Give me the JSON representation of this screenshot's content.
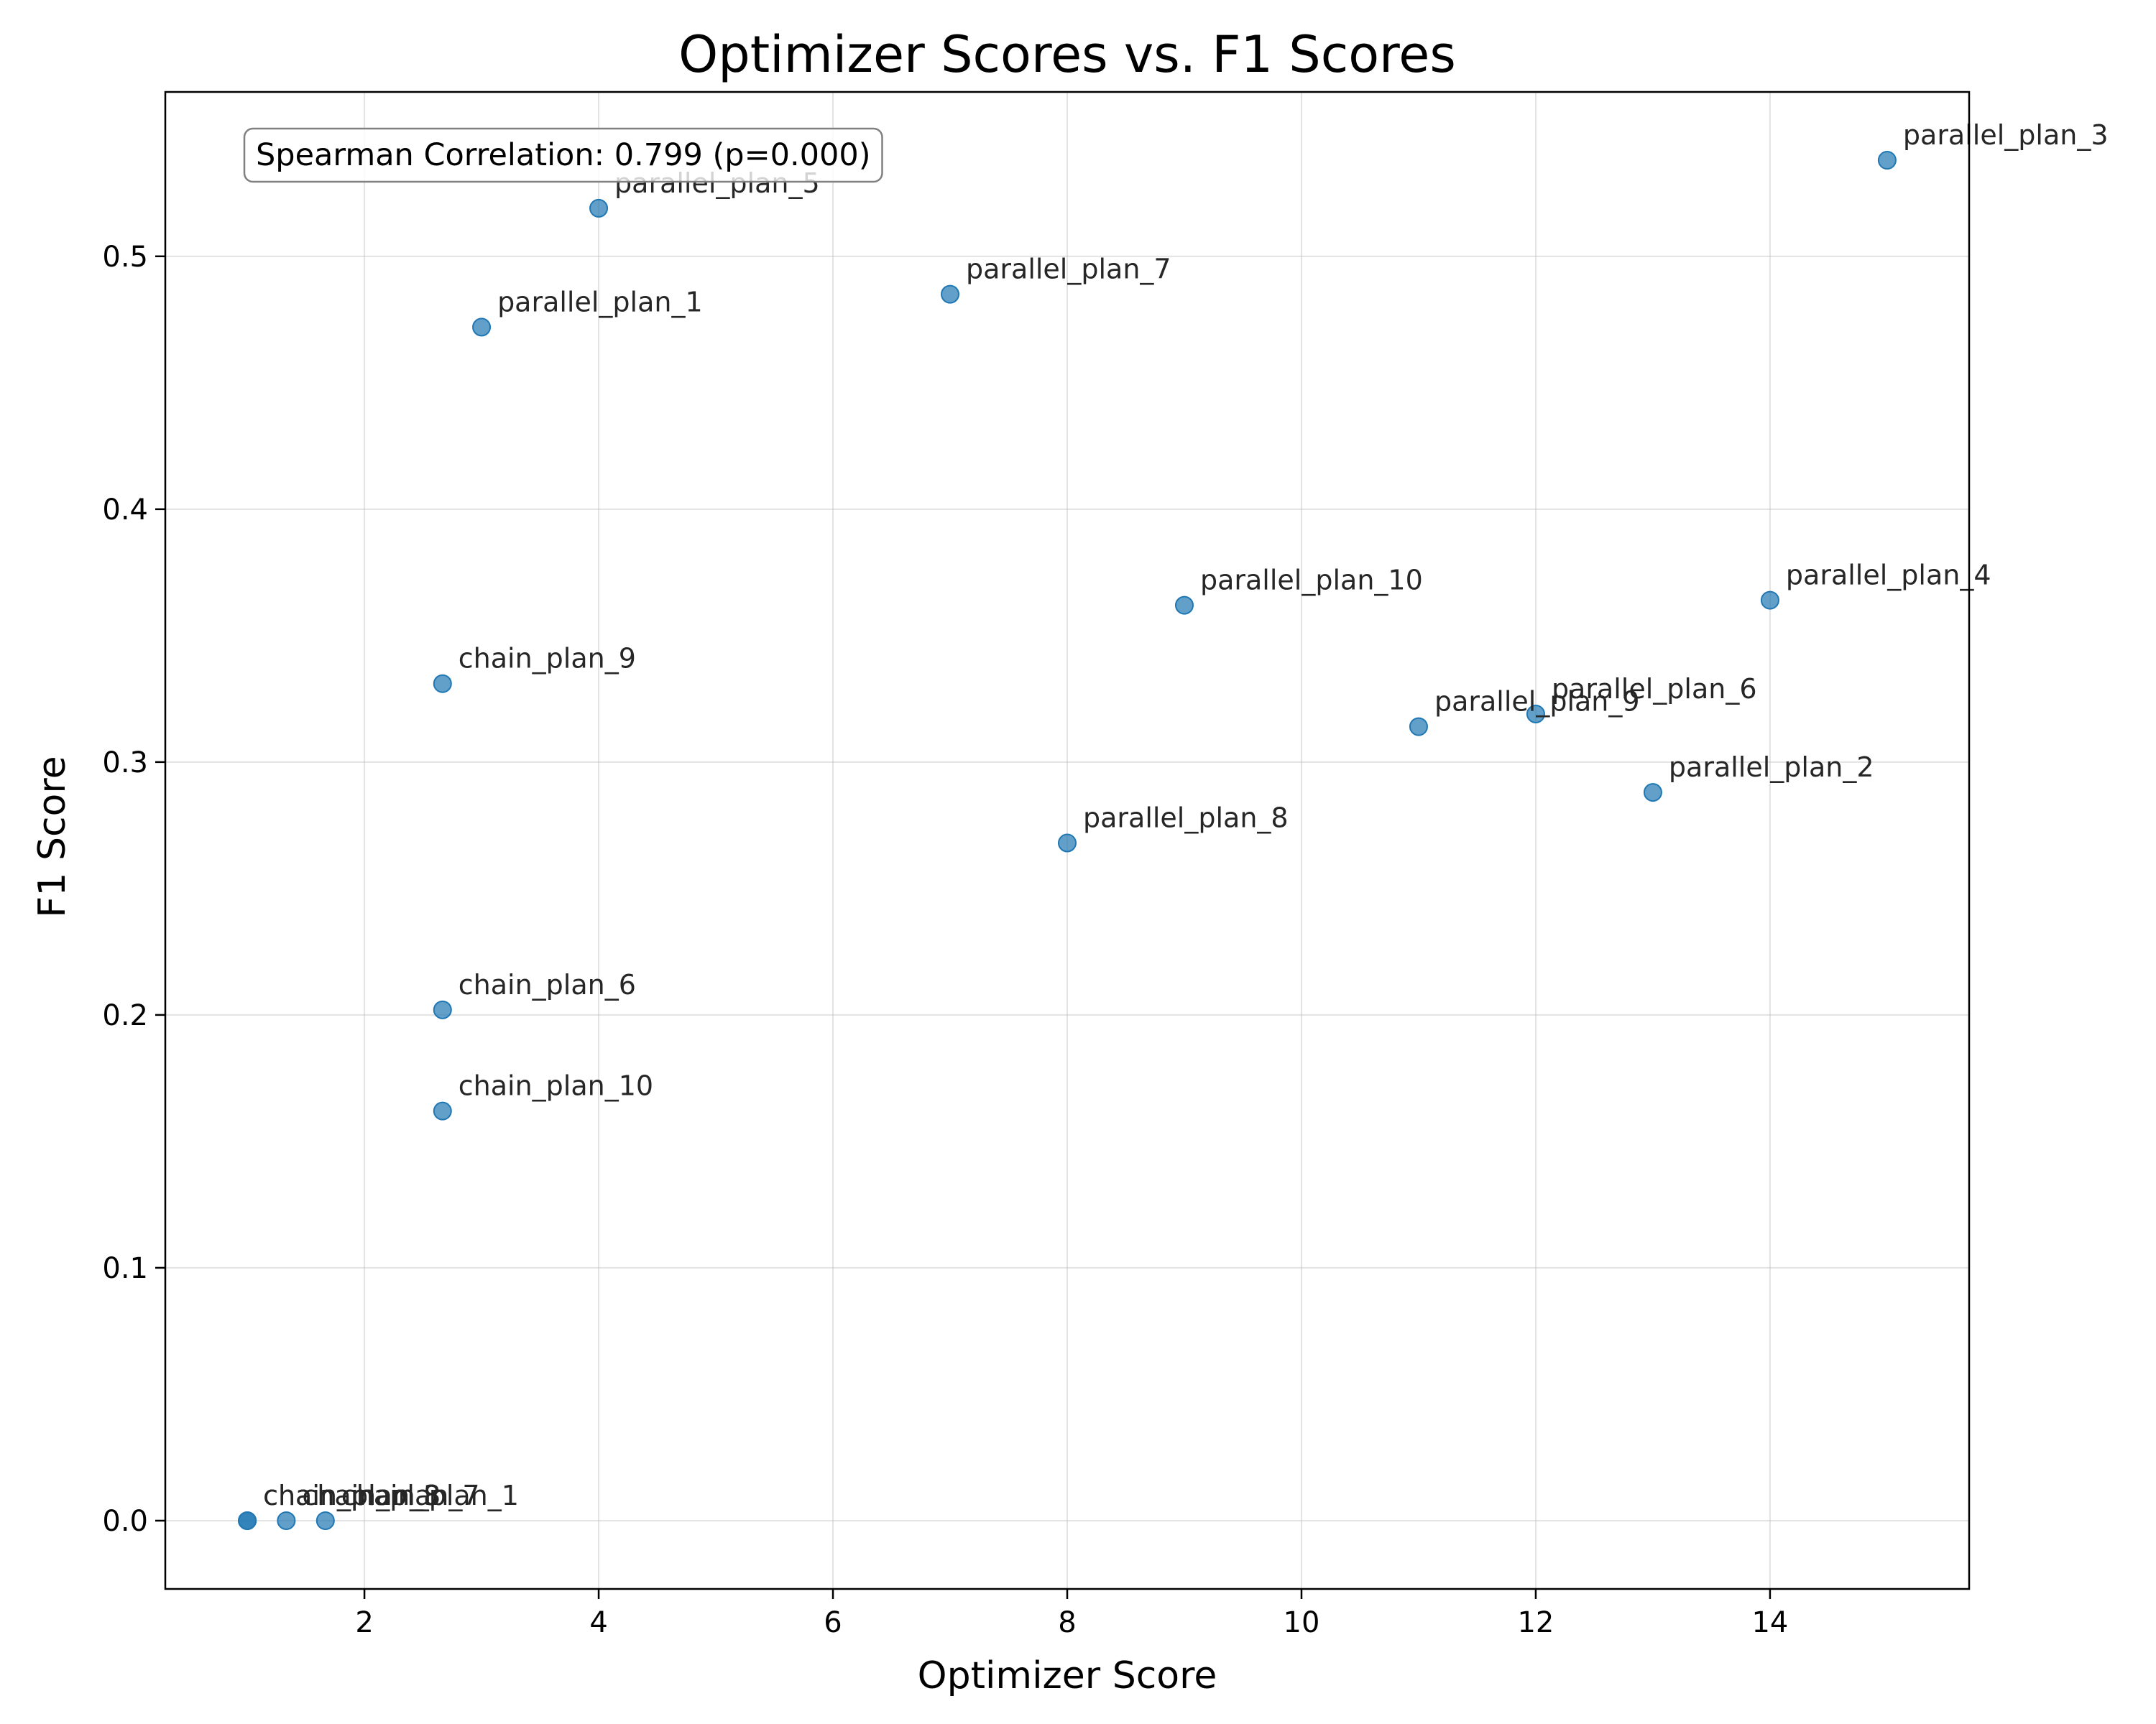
{
  "chart_data": {
    "type": "scatter",
    "title": "Optimizer Scores vs. F1 Scores",
    "xlabel": "Optimizer Score",
    "ylabel": "F1 Score",
    "xlim": [
      0.3,
      15.7
    ],
    "ylim": [
      -0.027,
      0.565
    ],
    "xticks": [
      2,
      4,
      6,
      8,
      10,
      12,
      14
    ],
    "yticks": [
      0.0,
      0.1,
      0.2,
      0.3,
      0.4,
      0.5
    ],
    "grid": true,
    "marker_color": "#1f77b4",
    "annotation": "Spearman Correlation: 0.799 (p=0.000)",
    "points": [
      {
        "label": "parallel_plan_3",
        "x": 15,
        "y": 0.538
      },
      {
        "label": "parallel_plan_5",
        "x": 4,
        "y": 0.519
      },
      {
        "label": "parallel_plan_7",
        "x": 7,
        "y": 0.485
      },
      {
        "label": "parallel_plan_1",
        "x": 3,
        "y": 0.472
      },
      {
        "label": "parallel_plan_10",
        "x": 9,
        "y": 0.362
      },
      {
        "label": "parallel_plan_4",
        "x": 14,
        "y": 0.364
      },
      {
        "label": "chain_plan_9",
        "x": 2.667,
        "y": 0.331
      },
      {
        "label": "parallel_plan_6",
        "x": 12,
        "y": 0.319
      },
      {
        "label": "parallel_plan_9",
        "x": 11,
        "y": 0.314
      },
      {
        "label": "parallel_plan_2",
        "x": 13,
        "y": 0.288
      },
      {
        "label": "parallel_plan_8",
        "x": 8,
        "y": 0.268
      },
      {
        "label": "chain_plan_6",
        "x": 2.667,
        "y": 0.202
      },
      {
        "label": "chain_plan_10",
        "x": 2.667,
        "y": 0.162
      },
      {
        "label": "chain_plan_8",
        "x": 1,
        "y": 0.0
      },
      {
        "label": "chain_plan_3",
        "x": 1,
        "y": 0.0
      },
      {
        "label": "chain_plan_7",
        "x": 1.333,
        "y": 0.0
      },
      {
        "label": "chain_plan_1",
        "x": 1.667,
        "y": 0.0
      }
    ]
  }
}
